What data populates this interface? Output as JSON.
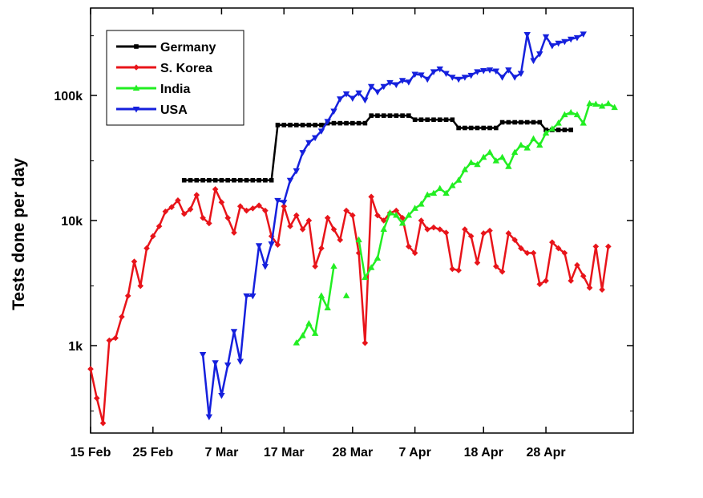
{
  "chart_data": {
    "type": "line",
    "title": "",
    "xlabel": "",
    "ylabel": "Tests done per day",
    "yscale": "log",
    "ylim": [
      200,
      500000
    ],
    "xlim": [
      "2020-02-15",
      "2020-05-12"
    ],
    "x_ticks": [
      {
        "date": "2020-02-15",
        "label": "15 Feb"
      },
      {
        "date": "2020-02-25",
        "label": "25 Feb"
      },
      {
        "date": "2020-03-07",
        "label": "7 Mar"
      },
      {
        "date": "2020-03-17",
        "label": "17 Mar"
      },
      {
        "date": "2020-03-28",
        "label": "28 Mar"
      },
      {
        "date": "2020-04-07",
        "label": "7 Apr"
      },
      {
        "date": "2020-04-18",
        "label": "18 Apr"
      },
      {
        "date": "2020-04-28",
        "label": "28 Apr"
      }
    ],
    "y_ticks": [
      {
        "value": 1000,
        "label": "1k"
      },
      {
        "value": 10000,
        "label": "10k"
      },
      {
        "value": 100000,
        "label": "100k"
      }
    ],
    "grid": false,
    "legend_position": "top-left",
    "series": [
      {
        "name": "Germany",
        "color": "#000000",
        "marker": "square",
        "points": [
          [
            "2020-03-01",
            21000
          ],
          [
            "2020-03-02",
            21000
          ],
          [
            "2020-03-03",
            21000
          ],
          [
            "2020-03-04",
            21000
          ],
          [
            "2020-03-05",
            21000
          ],
          [
            "2020-03-06",
            21000
          ],
          [
            "2020-03-07",
            21000
          ],
          [
            "2020-03-08",
            21000
          ],
          [
            "2020-03-09",
            21000
          ],
          [
            "2020-03-10",
            21000
          ],
          [
            "2020-03-11",
            21000
          ],
          [
            "2020-03-12",
            21000
          ],
          [
            "2020-03-13",
            21000
          ],
          [
            "2020-03-14",
            21000
          ],
          [
            "2020-03-15",
            21000
          ],
          [
            "2020-03-16",
            58000
          ],
          [
            "2020-03-17",
            58000
          ],
          [
            "2020-03-18",
            58000
          ],
          [
            "2020-03-19",
            58000
          ],
          [
            "2020-03-20",
            58000
          ],
          [
            "2020-03-21",
            58000
          ],
          [
            "2020-03-22",
            58000
          ],
          [
            "2020-03-23",
            58000
          ],
          [
            "2020-03-24",
            60000
          ],
          [
            "2020-03-25",
            60000
          ],
          [
            "2020-03-26",
            60000
          ],
          [
            "2020-03-27",
            60000
          ],
          [
            "2020-03-28",
            60000
          ],
          [
            "2020-03-29",
            60000
          ],
          [
            "2020-03-30",
            60000
          ],
          [
            "2020-03-31",
            69000
          ],
          [
            "2020-04-01",
            69000
          ],
          [
            "2020-04-02",
            69000
          ],
          [
            "2020-04-03",
            69000
          ],
          [
            "2020-04-04",
            69000
          ],
          [
            "2020-04-05",
            69000
          ],
          [
            "2020-04-06",
            69000
          ],
          [
            "2020-04-07",
            64000
          ],
          [
            "2020-04-08",
            64000
          ],
          [
            "2020-04-09",
            64000
          ],
          [
            "2020-04-10",
            64000
          ],
          [
            "2020-04-11",
            64000
          ],
          [
            "2020-04-12",
            64000
          ],
          [
            "2020-04-13",
            64000
          ],
          [
            "2020-04-14",
            55000
          ],
          [
            "2020-04-15",
            55000
          ],
          [
            "2020-04-16",
            55000
          ],
          [
            "2020-04-17",
            55000
          ],
          [
            "2020-04-18",
            55000
          ],
          [
            "2020-04-19",
            55000
          ],
          [
            "2020-04-20",
            55000
          ],
          [
            "2020-04-21",
            61000
          ],
          [
            "2020-04-22",
            61000
          ],
          [
            "2020-04-23",
            61000
          ],
          [
            "2020-04-24",
            61000
          ],
          [
            "2020-04-25",
            61000
          ],
          [
            "2020-04-26",
            61000
          ],
          [
            "2020-04-27",
            61000
          ],
          [
            "2020-04-28",
            53000
          ],
          [
            "2020-04-29",
            53000
          ],
          [
            "2020-04-30",
            53000
          ],
          [
            "2020-05-01",
            53000
          ],
          [
            "2020-05-02",
            53000
          ]
        ]
      },
      {
        "name": "S. Korea",
        "color": "#e8141a",
        "marker": "diamond",
        "points": [
          [
            "2020-02-15",
            650
          ],
          [
            "2020-02-16",
            380
          ],
          [
            "2020-02-17",
            240
          ],
          [
            "2020-02-18",
            1100
          ],
          [
            "2020-02-19",
            1150
          ],
          [
            "2020-02-20",
            1700
          ],
          [
            "2020-02-21",
            2500
          ],
          [
            "2020-02-22",
            4700
          ],
          [
            "2020-02-23",
            3000
          ],
          [
            "2020-02-24",
            6000
          ],
          [
            "2020-02-25",
            7500
          ],
          [
            "2020-02-26",
            9000
          ],
          [
            "2020-02-27",
            11800
          ],
          [
            "2020-02-28",
            12800
          ],
          [
            "2020-02-29",
            14500
          ],
          [
            "2020-03-01",
            11300
          ],
          [
            "2020-03-02",
            12300
          ],
          [
            "2020-03-03",
            16000
          ],
          [
            "2020-03-04",
            10500
          ],
          [
            "2020-03-05",
            9500
          ],
          [
            "2020-03-06",
            17800
          ],
          [
            "2020-03-07",
            14000
          ],
          [
            "2020-03-08",
            10500
          ],
          [
            "2020-03-09",
            8000
          ],
          [
            "2020-03-10",
            13000
          ],
          [
            "2020-03-11",
            12000
          ],
          [
            "2020-03-12",
            12500
          ],
          [
            "2020-03-13",
            13200
          ],
          [
            "2020-03-14",
            12000
          ],
          [
            "2020-03-15",
            7500
          ],
          [
            "2020-03-16",
            6400
          ],
          [
            "2020-03-17",
            13000
          ],
          [
            "2020-03-18",
            9000
          ],
          [
            "2020-03-19",
            11000
          ],
          [
            "2020-03-20",
            8500
          ],
          [
            "2020-03-21",
            10000
          ],
          [
            "2020-03-22",
            4300
          ],
          [
            "2020-03-23",
            6000
          ],
          [
            "2020-03-24",
            10500
          ],
          [
            "2020-03-25",
            8500
          ],
          [
            "2020-03-26",
            7000
          ],
          [
            "2020-03-27",
            12000
          ],
          [
            "2020-03-28",
            11000
          ],
          [
            "2020-03-29",
            5500
          ],
          [
            "2020-03-30",
            1050
          ],
          [
            "2020-03-31",
            15500
          ],
          [
            "2020-04-01",
            11000
          ],
          [
            "2020-04-02",
            10000
          ],
          [
            "2020-04-03",
            11500
          ],
          [
            "2020-04-04",
            12000
          ],
          [
            "2020-04-05",
            10500
          ],
          [
            "2020-04-06",
            6200
          ],
          [
            "2020-04-07",
            5500
          ],
          [
            "2020-04-08",
            10000
          ],
          [
            "2020-04-09",
            8500
          ],
          [
            "2020-04-10",
            8800
          ],
          [
            "2020-04-11",
            8500
          ],
          [
            "2020-04-12",
            8000
          ],
          [
            "2020-04-13",
            4100
          ],
          [
            "2020-04-14",
            4000
          ],
          [
            "2020-04-15",
            8500
          ],
          [
            "2020-04-16",
            7500
          ],
          [
            "2020-04-17",
            4600
          ],
          [
            "2020-04-18",
            7900
          ],
          [
            "2020-04-19",
            8300
          ],
          [
            "2020-04-20",
            4300
          ],
          [
            "2020-04-21",
            3900
          ],
          [
            "2020-04-22",
            7900
          ],
          [
            "2020-04-23",
            7000
          ],
          [
            "2020-04-24",
            6000
          ],
          [
            "2020-04-25",
            5500
          ],
          [
            "2020-04-26",
            5500
          ],
          [
            "2020-04-27",
            3100
          ],
          [
            "2020-04-28",
            3300
          ],
          [
            "2020-04-29",
            6700
          ],
          [
            "2020-04-30",
            6000
          ],
          [
            "2020-05-01",
            5500
          ],
          [
            "2020-05-02",
            3300
          ],
          [
            "2020-05-03",
            4400
          ],
          [
            "2020-05-04",
            3600
          ],
          [
            "2020-05-05",
            2900
          ],
          [
            "2020-05-06",
            6200
          ],
          [
            "2020-05-07",
            2800
          ],
          [
            "2020-05-08",
            6200
          ]
        ]
      },
      {
        "name": "India",
        "color": "#22ee22",
        "marker": "triangle-up",
        "points": [
          [
            "2020-03-19",
            1050
          ],
          [
            "2020-03-20",
            1200
          ],
          [
            "2020-03-21",
            1500
          ],
          [
            "2020-03-22",
            1250
          ],
          [
            "2020-03-23",
            2500
          ],
          [
            "2020-03-24",
            2000
          ],
          [
            "2020-03-25",
            4300
          ],
          null,
          [
            "2020-03-27",
            2500
          ],
          null,
          [
            "2020-03-29",
            7000
          ],
          [
            "2020-03-30",
            3500
          ],
          [
            "2020-03-31",
            4200
          ],
          [
            "2020-04-01",
            5000
          ],
          [
            "2020-04-02",
            8500
          ],
          [
            "2020-04-03",
            11500
          ],
          [
            "2020-04-04",
            11000
          ],
          [
            "2020-04-05",
            9500
          ],
          [
            "2020-04-06",
            11000
          ],
          [
            "2020-04-07",
            12500
          ],
          [
            "2020-04-08",
            13500
          ],
          [
            "2020-04-09",
            16000
          ],
          [
            "2020-04-10",
            16500
          ],
          [
            "2020-04-11",
            18000
          ],
          [
            "2020-04-12",
            16500
          ],
          [
            "2020-04-13",
            19000
          ],
          [
            "2020-04-14",
            21000
          ],
          [
            "2020-04-15",
            25500
          ],
          [
            "2020-04-16",
            29000
          ],
          [
            "2020-04-17",
            28000
          ],
          [
            "2020-04-18",
            32000
          ],
          [
            "2020-04-19",
            35000
          ],
          [
            "2020-04-20",
            30000
          ],
          [
            "2020-04-21",
            32000
          ],
          [
            "2020-04-22",
            27000
          ],
          [
            "2020-04-23",
            35000
          ],
          [
            "2020-04-24",
            40000
          ],
          [
            "2020-04-25",
            38000
          ],
          [
            "2020-04-26",
            45000
          ],
          [
            "2020-04-27",
            40000
          ],
          [
            "2020-04-28",
            50000
          ],
          [
            "2020-04-29",
            54000
          ],
          [
            "2020-04-30",
            60000
          ],
          [
            "2020-05-01",
            70000
          ],
          [
            "2020-05-02",
            73000
          ],
          [
            "2020-05-03",
            70000
          ],
          [
            "2020-05-04",
            60000
          ],
          [
            "2020-05-05",
            86000
          ],
          [
            "2020-05-06",
            85000
          ],
          [
            "2020-05-07",
            82000
          ],
          [
            "2020-05-08",
            86000
          ],
          [
            "2020-05-09",
            80000
          ]
        ]
      },
      {
        "name": "USA",
        "color": "#1520dd",
        "marker": "triangle-down",
        "points": [
          [
            "2020-03-04",
            850
          ],
          [
            "2020-03-05",
            270
          ],
          [
            "2020-03-06",
            730
          ],
          [
            "2020-03-07",
            400
          ],
          [
            "2020-03-08",
            700
          ],
          [
            "2020-03-09",
            1300
          ],
          [
            "2020-03-10",
            750
          ],
          [
            "2020-03-11",
            2500
          ],
          [
            "2020-03-12",
            2500
          ],
          [
            "2020-03-13",
            6300
          ],
          [
            "2020-03-14",
            4300
          ],
          [
            "2020-03-15",
            6500
          ],
          [
            "2020-03-16",
            14500
          ],
          [
            "2020-03-17",
            14000
          ],
          [
            "2020-03-18",
            21000
          ],
          [
            "2020-03-19",
            25000
          ],
          [
            "2020-03-20",
            35000
          ],
          [
            "2020-03-21",
            42000
          ],
          [
            "2020-03-22",
            46000
          ],
          [
            "2020-03-23",
            52000
          ],
          [
            "2020-03-24",
            62000
          ],
          [
            "2020-03-25",
            75000
          ],
          [
            "2020-03-26",
            94000
          ],
          [
            "2020-03-27",
            103000
          ],
          [
            "2020-03-28",
            95000
          ],
          [
            "2020-03-29",
            105000
          ],
          [
            "2020-03-30",
            92000
          ],
          [
            "2020-03-31",
            118000
          ],
          [
            "2020-04-01",
            107000
          ],
          [
            "2020-04-02",
            118000
          ],
          [
            "2020-04-03",
            127000
          ],
          [
            "2020-04-04",
            122000
          ],
          [
            "2020-04-05",
            132000
          ],
          [
            "2020-04-06",
            128000
          ],
          [
            "2020-04-07",
            148000
          ],
          [
            "2020-04-08",
            146000
          ],
          [
            "2020-04-09",
            135000
          ],
          [
            "2020-04-10",
            155000
          ],
          [
            "2020-04-11",
            163000
          ],
          [
            "2020-04-12",
            150000
          ],
          [
            "2020-04-13",
            140000
          ],
          [
            "2020-04-14",
            135000
          ],
          [
            "2020-04-15",
            140000
          ],
          [
            "2020-04-16",
            145000
          ],
          [
            "2020-04-17",
            155000
          ],
          [
            "2020-04-18",
            158000
          ],
          [
            "2020-04-19",
            160000
          ],
          [
            "2020-04-20",
            157000
          ],
          [
            "2020-04-21",
            140000
          ],
          [
            "2020-04-22",
            160000
          ],
          [
            "2020-04-23",
            140000
          ],
          [
            "2020-04-24",
            150000
          ],
          [
            "2020-04-25",
            307000
          ],
          [
            "2020-04-26",
            190000
          ],
          [
            "2020-04-27",
            215000
          ],
          [
            "2020-04-28",
            295000
          ],
          [
            "2020-04-29",
            250000
          ],
          [
            "2020-04-30",
            262000
          ],
          [
            "2020-05-01",
            270000
          ],
          [
            "2020-05-02",
            282000
          ],
          [
            "2020-05-03",
            290000
          ],
          [
            "2020-05-04",
            310000
          ]
        ]
      }
    ]
  }
}
